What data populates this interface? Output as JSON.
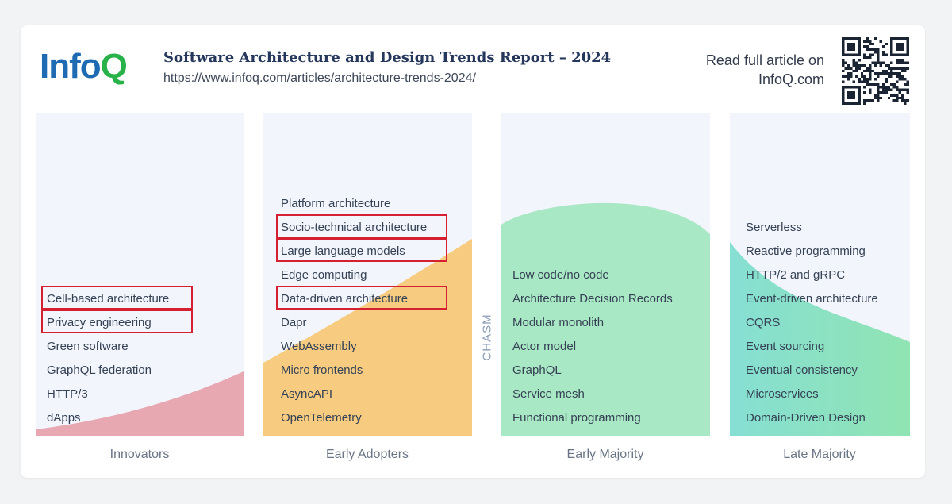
{
  "header": {
    "logo_info": "Info",
    "logo_q": "Q",
    "title": "Software Architecture and Design Trends Report – 2024",
    "url": "https://www.infoq.com/articles/architecture-trends-2024/",
    "read_line1": "Read full article on",
    "read_line2": "InfoQ.com"
  },
  "colors": {
    "innovators": "#e8a8b2",
    "early_adopters": "#f8cc80",
    "early_majority": "#a9e8c4",
    "late_majority_start": "#86dfd3",
    "late_majority_end": "#90e4b3",
    "highlight": "#d42030"
  },
  "chasm_label": "CHASM",
  "columns": [
    {
      "label": "Innovators",
      "items": [
        "Cell-based architecture",
        "Privacy engineering",
        "Green software",
        "GraphQL federation",
        "HTTP/3",
        "dApps"
      ],
      "highlighted": [
        "Cell-based architecture",
        "Privacy engineering"
      ]
    },
    {
      "label": "Early Adopters",
      "items": [
        "Platform architecture",
        "Socio-technical architecture",
        "Large language models",
        "Edge computing",
        "Data-driven architecture",
        "Dapr",
        "WebAssembly",
        "Micro frontends",
        "AsyncAPI",
        "OpenTelemetry"
      ],
      "highlighted": [
        "Socio-technical architecture",
        "Large language models",
        "Data-driven architecture"
      ]
    },
    {
      "label": "Early Majority",
      "items": [
        "Low code/no code",
        "Architecture Decision Records",
        "Modular monolith",
        "Actor model",
        "GraphQL",
        "Service mesh",
        "Functional programming"
      ],
      "highlighted": []
    },
    {
      "label": "Late Majority",
      "items": [
        "Serverless",
        "Reactive programming",
        "HTTP/2 and gRPC",
        "Event-driven architecture",
        "CQRS",
        "Event sourcing",
        "Eventual consistency",
        "Microservices",
        "Domain-Driven Design"
      ],
      "highlighted": []
    }
  ]
}
